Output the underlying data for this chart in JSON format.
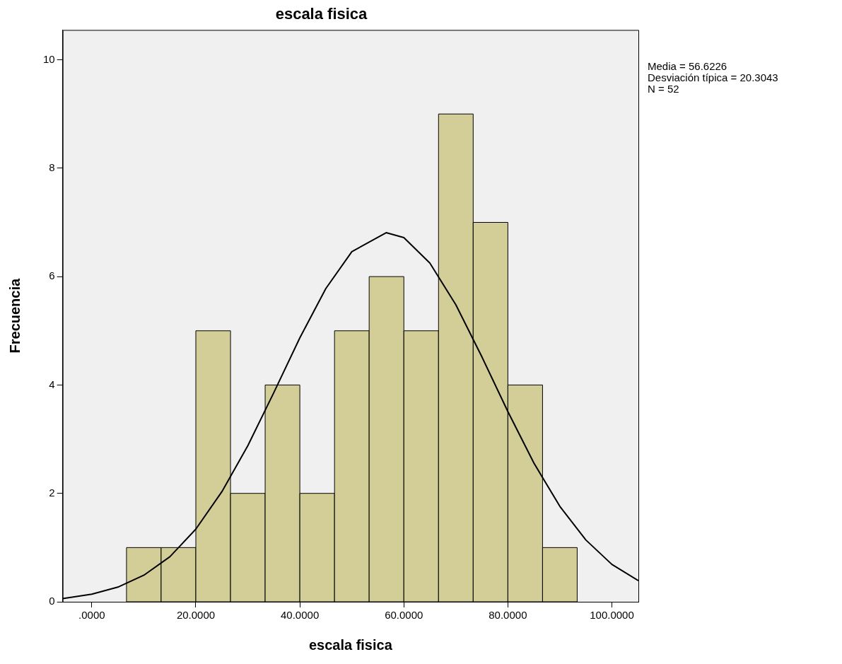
{
  "chart_data": {
    "type": "histogram",
    "title": "escala fisica",
    "xlabel": "escala fisica",
    "ylabel": "Frecuencia",
    "annotations": [
      "Media = 56.6226",
      "Desviación típica = 20.3043",
      "N = 52"
    ],
    "bins": [
      6.67,
      13.33,
      20,
      26.67,
      33.33,
      40,
      46.67,
      53.33,
      60,
      66.67,
      73.33,
      80,
      86.67,
      93.33
    ],
    "series": [
      {
        "type": "histogram",
        "color": "#d3ce97",
        "values": [
          1,
          1,
          5,
          2,
          4,
          2,
          5,
          6,
          5,
          9,
          7,
          4,
          1
        ]
      },
      {
        "type": "line",
        "color": "#000000",
        "x": [
          -5.6,
          0,
          5,
          10,
          15,
          20,
          25,
          30,
          35,
          40,
          45,
          50,
          56.6,
          60,
          65,
          70,
          75,
          80,
          85,
          90,
          95,
          100,
          105.1
        ],
        "values": [
          0.06,
          0.14,
          0.27,
          0.49,
          0.83,
          1.34,
          2.03,
          2.88,
          3.86,
          4.87,
          5.78,
          6.46,
          6.81,
          6.72,
          6.25,
          5.48,
          4.52,
          3.51,
          2.56,
          1.76,
          1.14,
          0.69,
          0.39
        ]
      }
    ],
    "xlim": [
      -5.6,
      105.1
    ],
    "ylim": [
      0,
      10.55
    ],
    "xticks": [
      {
        "value": 0,
        "label": ".0000"
      },
      {
        "value": 20,
        "label": "20.0000"
      },
      {
        "value": 40,
        "label": "40.0000"
      },
      {
        "value": 60,
        "label": "60.0000"
      },
      {
        "value": 80,
        "label": "80.0000"
      },
      {
        "value": 100,
        "label": "100.0000"
      }
    ],
    "yticks": [
      0,
      2,
      4,
      6,
      8,
      10
    ],
    "grid": false,
    "legend": false,
    "marker": "none",
    "line_style": "solid"
  }
}
